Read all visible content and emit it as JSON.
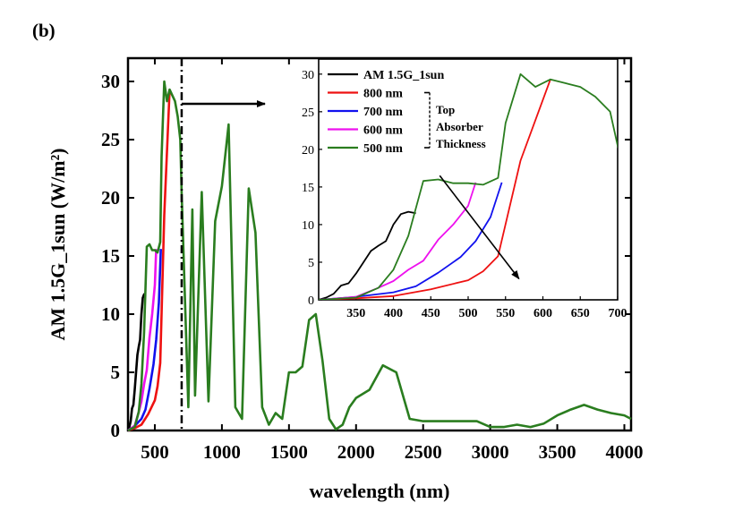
{
  "figure": {
    "panel_label": "(b)"
  },
  "chart_data": [
    {
      "type": "line",
      "xlabel": "wavelength (nm)",
      "ylabel": "AM 1.5G_1sun (W/m²)",
      "xlim": [
        300,
        4050
      ],
      "ylim": [
        0,
        32
      ],
      "xticks": [
        500,
        1000,
        1500,
        2000,
        2500,
        3000,
        3500,
        4000
      ],
      "yticks": [
        0,
        5,
        10,
        15,
        20,
        25,
        30
      ],
      "grid": false,
      "cutoff_marker": {
        "x": 700,
        "style": "dash-dot",
        "arrow": "right"
      },
      "series": [
        {
          "name": "AM 1.5G_1sun",
          "color": "#000000",
          "x": [
            300,
            310,
            320,
            330,
            340,
            350,
            360,
            370,
            380,
            390,
            400,
            410,
            420,
            430
          ],
          "y": [
            0,
            0.3,
            0.8,
            1.9,
            2.2,
            3.5,
            5.0,
            6.5,
            7.2,
            7.8,
            10.0,
            11.4,
            11.7,
            11.5
          ]
        },
        {
          "name": "800 nm",
          "color": "#ee1111",
          "x": [
            300,
            350,
            400,
            450,
            500,
            520,
            540,
            570,
            610
          ],
          "y": [
            0,
            0.2,
            0.5,
            1.4,
            2.6,
            3.8,
            5.8,
            18.5,
            29.3
          ]
        },
        {
          "name": "700 nm",
          "color": "#1111ee",
          "x": [
            300,
            350,
            400,
            430,
            460,
            490,
            510,
            530,
            545
          ],
          "y": [
            0,
            0.4,
            1.0,
            1.8,
            3.6,
            5.7,
            7.8,
            11.0,
            15.6
          ]
        },
        {
          "name": "600 nm",
          "color": "#ee11ee",
          "x": [
            300,
            350,
            380,
            400,
            420,
            440,
            460,
            480,
            500,
            510
          ],
          "y": [
            0,
            0.4,
            1.6,
            2.5,
            4.0,
            5.2,
            8.0,
            10.0,
            12.5,
            15.6
          ]
        },
        {
          "name": "500 nm",
          "color": "#2a7d1f",
          "x": [
            300,
            350,
            380,
            400,
            420,
            440,
            460,
            480,
            500,
            520,
            540,
            550,
            570,
            590,
            610,
            630,
            650,
            670,
            690,
            700,
            750,
            780,
            800,
            850,
            900,
            950,
            1000,
            1050,
            1100,
            1150,
            1200,
            1250,
            1300,
            1350,
            1400,
            1450,
            1500,
            1550,
            1600,
            1650,
            1700,
            1750,
            1800,
            1850,
            1900,
            1950,
            2000,
            2100,
            2200,
            2300,
            2400,
            2500,
            2700,
            2900,
            3000,
            3100,
            3200,
            3300,
            3400,
            3500,
            3600,
            3700,
            3800,
            3900,
            4000,
            4050
          ],
          "y": [
            0,
            0.3,
            1.6,
            4.0,
            8.5,
            15.8,
            16.0,
            15.5,
            15.5,
            15.3,
            16.2,
            23.5,
            30.0,
            28.3,
            29.3,
            28.8,
            28.3,
            27.0,
            25.0,
            20.5,
            2.0,
            19.0,
            3.0,
            20.5,
            2.5,
            18.0,
            21.0,
            26.3,
            2.0,
            1.0,
            20.8,
            17.0,
            2.0,
            0.5,
            1.5,
            1.0,
            5.0,
            5.0,
            5.5,
            9.5,
            10.0,
            6.0,
            1.0,
            0.1,
            0.5,
            2.0,
            2.8,
            3.5,
            5.6,
            5.0,
            1.0,
            0.8,
            0.8,
            0.8,
            0.3,
            0.3,
            0.5,
            0.3,
            0.6,
            1.3,
            1.8,
            2.2,
            1.8,
            1.5,
            1.3,
            1.0
          ]
        }
      ]
    },
    {
      "type": "line",
      "inset": true,
      "xlim": [
        300,
        700
      ],
      "ylim": [
        0,
        32
      ],
      "xticks": [
        350,
        400,
        450,
        500,
        550,
        600,
        650,
        700
      ],
      "yticks": [
        0,
        5,
        10,
        15,
        20,
        25,
        30
      ],
      "grid": false,
      "legend_position": "top-left",
      "legend": [
        "AM 1.5G_1sun",
        "800 nm",
        "700 nm",
        "600 nm",
        "500 nm"
      ],
      "legend_bracket_label": [
        "Top",
        "Absorber",
        "Thickness"
      ],
      "trend_arrow": {
        "from": [
          462,
          16.5
        ],
        "to": [
          568,
          2.8
        ]
      }
    }
  ]
}
